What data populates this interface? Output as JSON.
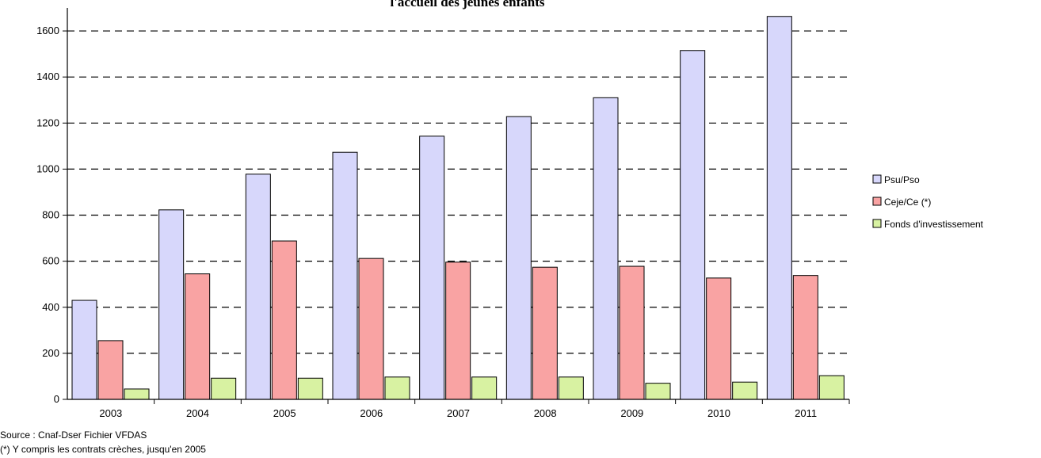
{
  "chart_data": {
    "type": "bar",
    "title": "l'accueil des jeunes enfants",
    "categories": [
      "2003",
      "2004",
      "2005",
      "2006",
      "2007",
      "2008",
      "2009",
      "2010",
      "2011"
    ],
    "series": [
      {
        "name": "Psu/Pso",
        "color": "#d7d7fb",
        "values": [
          430,
          823,
          978,
          1073,
          1143,
          1228,
          1310,
          1515,
          1663
        ]
      },
      {
        "name": "Ceje/Ce (*)",
        "color": "#f9a3a3",
        "values": [
          255,
          545,
          688,
          612,
          596,
          574,
          578,
          527,
          538
        ]
      },
      {
        "name": "Fonds d'investissement",
        "color": "#d8f2a2",
        "values": [
          45,
          92,
          92,
          97,
          97,
          97,
          70,
          75,
          103
        ]
      }
    ],
    "yticks": [
      0,
      200,
      400,
      600,
      800,
      1000,
      1200,
      1400,
      1600
    ],
    "ylim": [
      0,
      1700
    ],
    "grid": true,
    "legend": "right"
  },
  "footnotes": {
    "source": "Source : Cnaf-Dser Fichier VFDAS",
    "note": "(*) Y compris les contrats crèches, jusqu'en 2005"
  }
}
